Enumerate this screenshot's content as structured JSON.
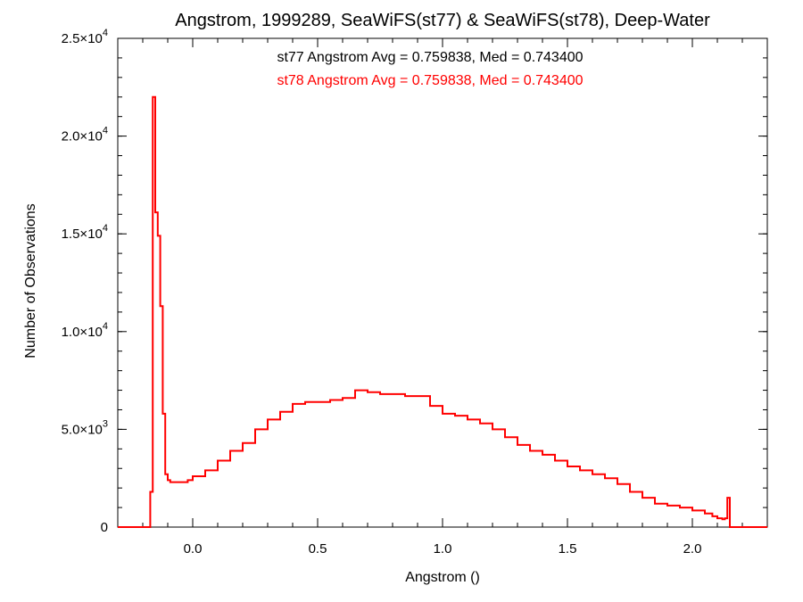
{
  "chart_data": {
    "type": "line",
    "title": "Angstrom, 1999289, SeaWiFS(st77) & SeaWiFS(st78), Deep-Water",
    "xlabel": "Angstrom ()",
    "ylabel": "Number of Observations",
    "xlim": [
      -0.3,
      2.3
    ],
    "ylim": [
      0,
      25000
    ],
    "grid": false,
    "x_ticks": [
      {
        "value": 0.0,
        "label": "0.0"
      },
      {
        "value": 0.5,
        "label": "0.5"
      },
      {
        "value": 1.0,
        "label": "1.0"
      },
      {
        "value": 1.5,
        "label": "1.5"
      },
      {
        "value": 2.0,
        "label": "2.0"
      }
    ],
    "y_ticks": [
      {
        "value": 0,
        "mantissa": "0",
        "exponent": ""
      },
      {
        "value": 5000,
        "mantissa": "5.0×10",
        "exponent": "3"
      },
      {
        "value": 10000,
        "mantissa": "1.0×10",
        "exponent": "4"
      },
      {
        "value": 15000,
        "mantissa": "1.5×10",
        "exponent": "4"
      },
      {
        "value": 20000,
        "mantissa": "2.0×10",
        "exponent": "4"
      },
      {
        "value": 25000,
        "mantissa": "2.5×10",
        "exponent": "4"
      }
    ],
    "annotations": [
      {
        "text": "st77 Angstrom Avg = 0.759838, Med = 0.743400",
        "color": "#000000"
      },
      {
        "text": "st78 Angstrom Avg = 0.759838, Med = 0.743400",
        "color": "#ff0000"
      }
    ],
    "series": [
      {
        "color": "#ff0000",
        "x": [
          -0.3,
          -0.25,
          -0.18,
          -0.17,
          -0.16,
          -0.15,
          -0.14,
          -0.13,
          -0.12,
          -0.11,
          -0.1,
          -0.09,
          -0.08,
          -0.05,
          -0.02,
          0.0,
          0.05,
          0.1,
          0.15,
          0.2,
          0.25,
          0.3,
          0.35,
          0.4,
          0.45,
          0.5,
          0.55,
          0.6,
          0.65,
          0.7,
          0.75,
          0.8,
          0.85,
          0.9,
          0.95,
          1.0,
          1.05,
          1.1,
          1.15,
          1.2,
          1.25,
          1.3,
          1.35,
          1.4,
          1.45,
          1.5,
          1.55,
          1.6,
          1.65,
          1.7,
          1.75,
          1.8,
          1.85,
          1.9,
          1.95,
          2.0,
          2.05,
          2.08,
          2.1,
          2.12,
          2.13,
          2.14,
          2.15,
          2.16,
          2.2,
          2.3
        ],
        "y": [
          0,
          0,
          0,
          1800,
          22000,
          16100,
          14900,
          11300,
          5800,
          2700,
          2400,
          2300,
          2300,
          2300,
          2400,
          2600,
          2900,
          3400,
          3900,
          4300,
          5000,
          5500,
          5900,
          6300,
          6400,
          6400,
          6500,
          6600,
          7000,
          6900,
          6800,
          6800,
          6700,
          6700,
          6200,
          5800,
          5700,
          5500,
          5300,
          5000,
          4600,
          4200,
          3900,
          3700,
          3400,
          3100,
          2900,
          2700,
          2500,
          2200,
          1800,
          1500,
          1200,
          1100,
          1000,
          850,
          700,
          550,
          450,
          400,
          450,
          1500,
          0,
          0,
          0,
          0
        ]
      }
    ]
  }
}
